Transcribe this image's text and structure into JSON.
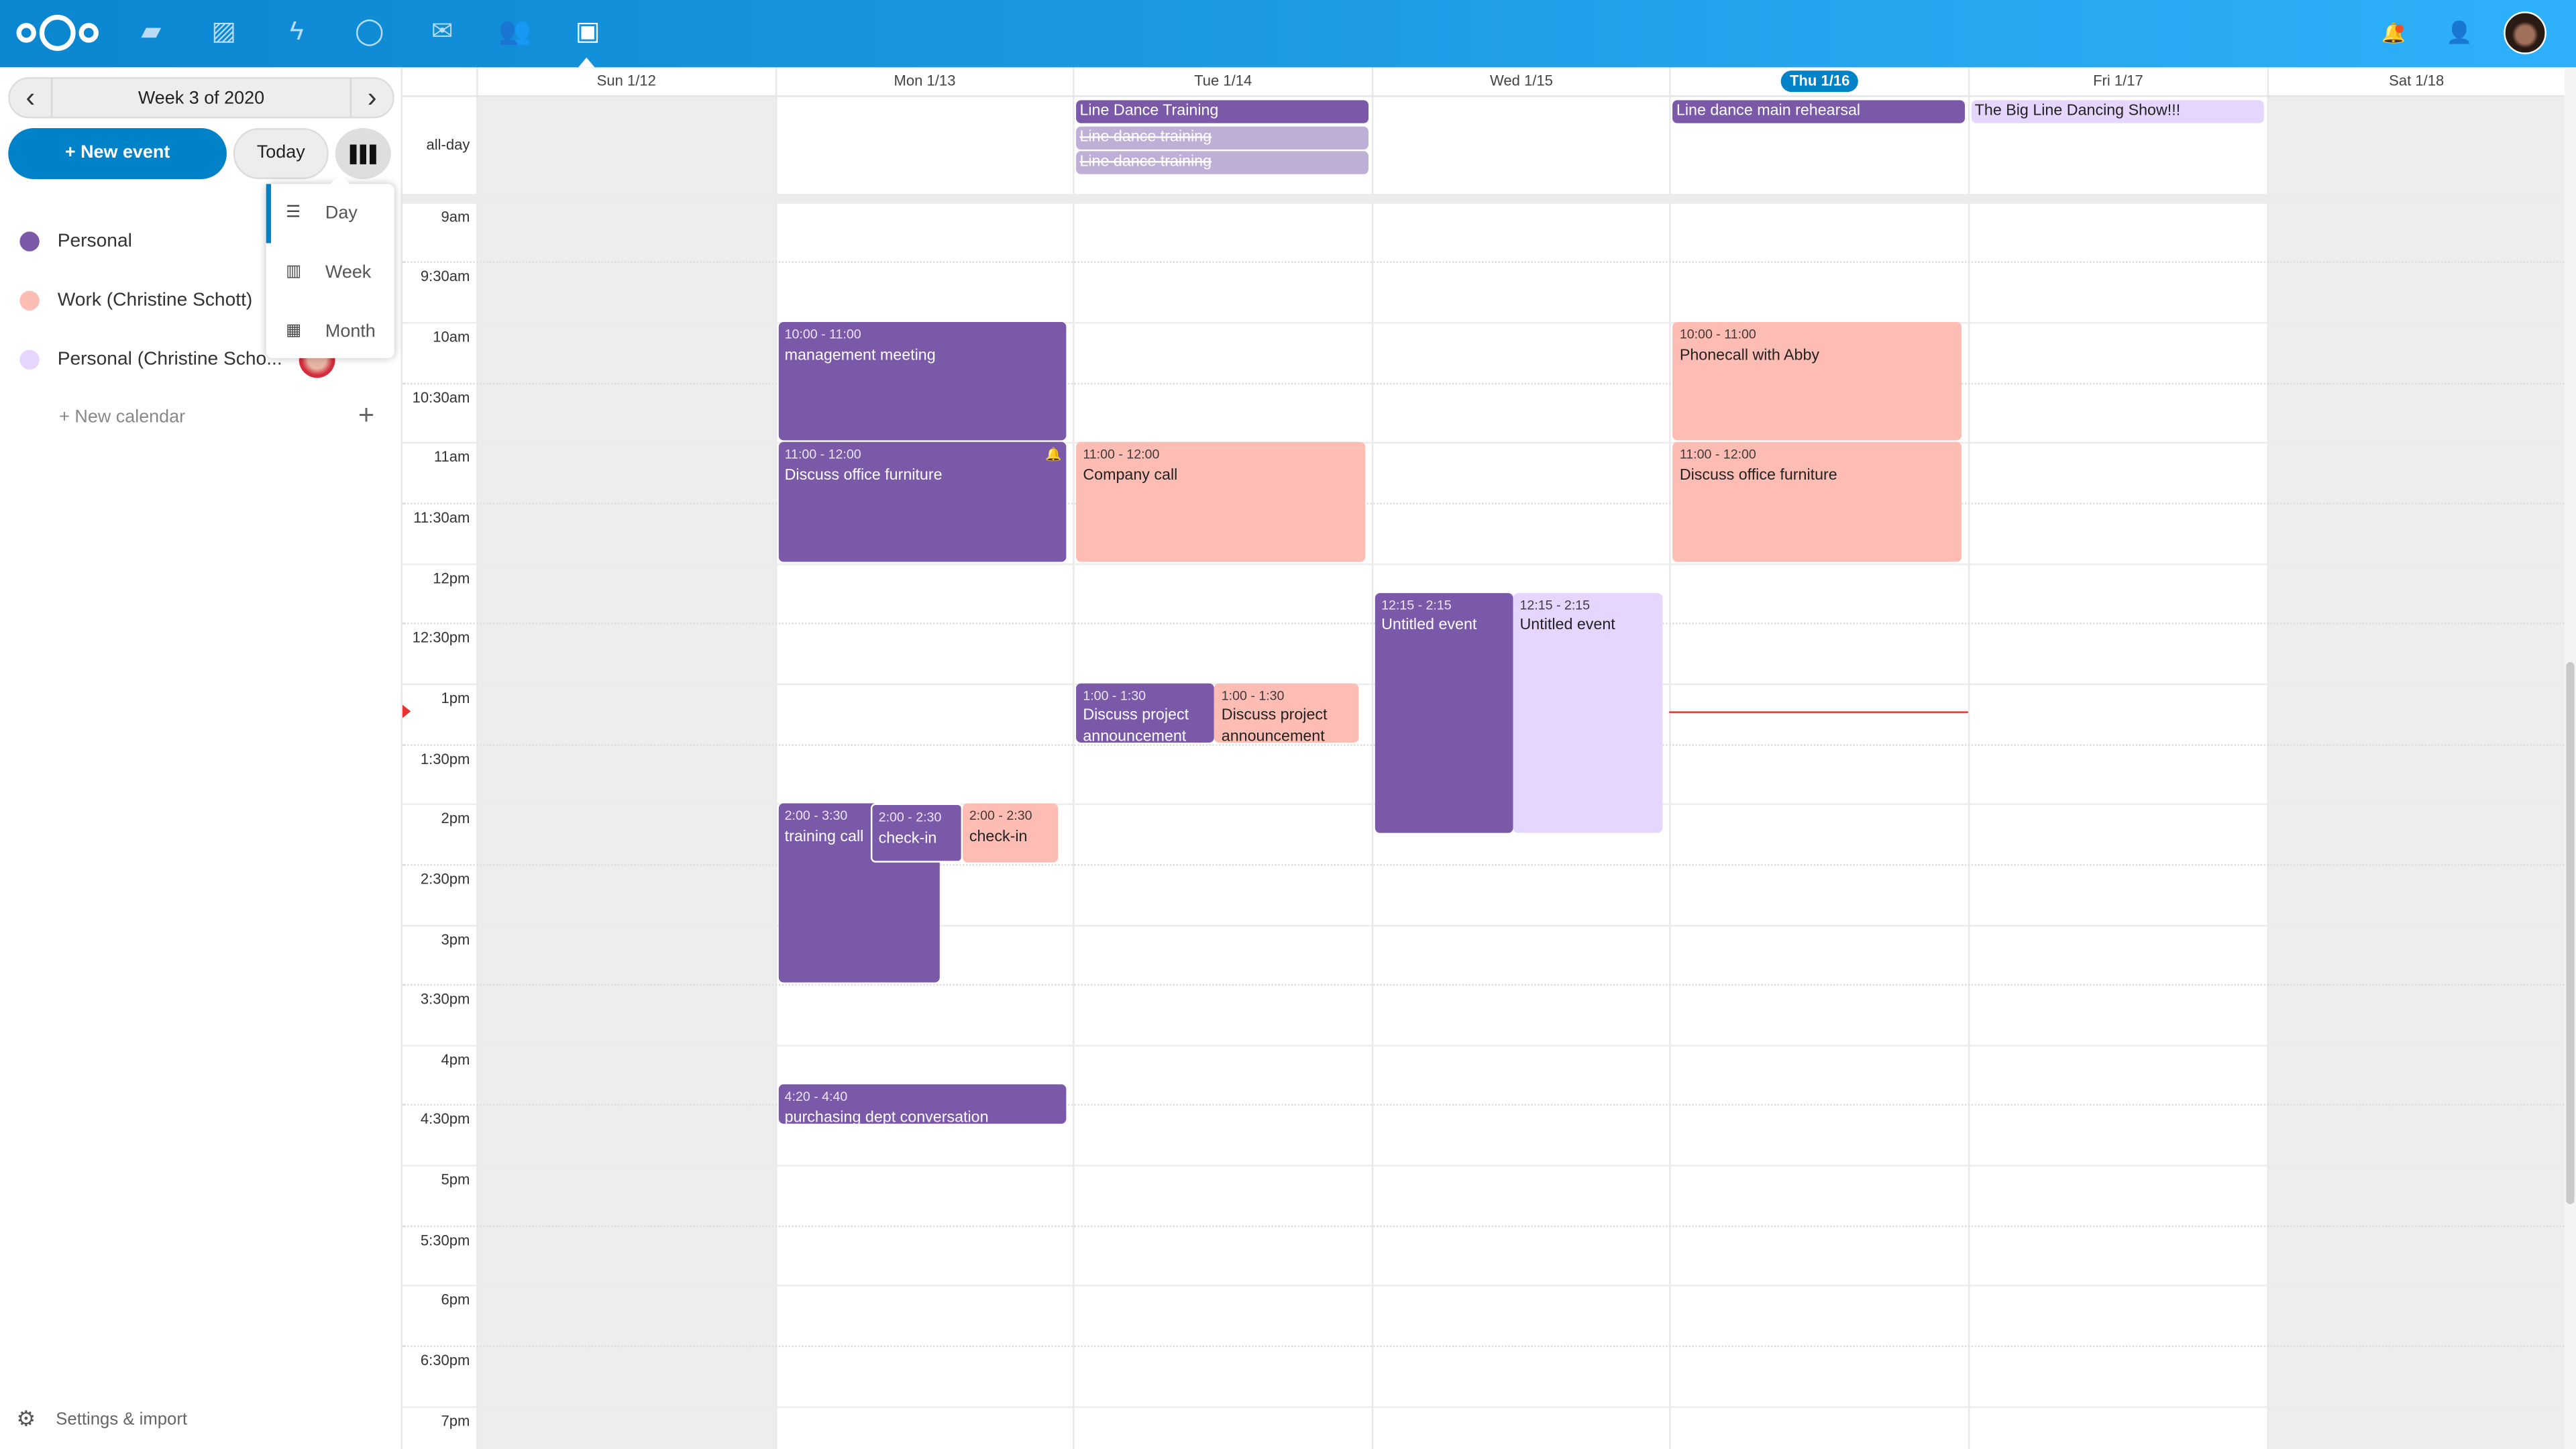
{
  "topbar": {
    "apps": [
      "nextcloud-logo",
      "files-icon",
      "photos-icon",
      "activity-icon",
      "talk-icon",
      "mail-icon",
      "contacts-icon",
      "calendar-icon"
    ],
    "right": [
      "notifications-icon",
      "contacts-menu-icon",
      "user-avatar"
    ],
    "accent": "#0082c9"
  },
  "sidebar": {
    "week_label": "Week 3 of 2020",
    "prev": "‹",
    "next": "›",
    "new_event": "+ New event",
    "today": "Today",
    "view_menu": [
      {
        "label": "Day",
        "icon": "day-view-icon",
        "active": true
      },
      {
        "label": "Week",
        "icon": "week-view-icon",
        "active": false
      },
      {
        "label": "Month",
        "icon": "month-view-icon",
        "active": false
      }
    ],
    "calendars": [
      {
        "label": "Personal",
        "color": "#7a59a9"
      },
      {
        "label": "Work (Christine Schott)",
        "color": "#fdbdb4"
      },
      {
        "label": "Personal (Christine Scho...",
        "color": "#e6d6ff",
        "shared": true,
        "more": "•••"
      }
    ],
    "new_calendar": "+ New calendar",
    "new_calendar_plus": "+",
    "settings": "Settings & import"
  },
  "calendar": {
    "days": [
      {
        "label": "Sun 1/12",
        "weekend": true
      },
      {
        "label": "Mon 1/13"
      },
      {
        "label": "Tue 1/14"
      },
      {
        "label": "Wed 1/15"
      },
      {
        "label": "Thu 1/16",
        "today": true
      },
      {
        "label": "Fri 1/17"
      },
      {
        "label": "Sat 1/18",
        "weekend": true
      }
    ],
    "allday_label": "all-day",
    "time_labels": [
      "9am",
      "9:30am",
      "10am",
      "10:30am",
      "11am",
      "11:30am",
      "12pm",
      "12:30pm",
      "1pm",
      "1:30pm",
      "2pm",
      "2:30pm",
      "3pm",
      "3:30pm",
      "4pm",
      "4:30pm",
      "5pm",
      "5:30pm",
      "6pm",
      "6:30pm",
      "7pm"
    ],
    "allday_events": [
      {
        "day": 2,
        "title": "Line Dance Training",
        "calendar": 0,
        "cancelled": false
      },
      {
        "day": 2,
        "title": "Line dance training",
        "calendar": 0,
        "cancelled": true
      },
      {
        "day": 2,
        "title": "Line dance training",
        "calendar": 0,
        "cancelled": true
      },
      {
        "day": 4,
        "title": "Line dance main rehearsal",
        "calendar": 0,
        "cancelled": false
      },
      {
        "day": 5,
        "title": "The Big Line Dancing Show!!!",
        "calendar": 2,
        "cancelled": false
      }
    ],
    "events": [
      {
        "day": 1,
        "time": "10:00 - 11:00",
        "title": "management meeting",
        "calendar": 0,
        "start": 10,
        "end": 11
      },
      {
        "day": 1,
        "time": "11:00 - 12:00",
        "title": "Discuss office furniture",
        "calendar": 0,
        "start": 11,
        "end": 12,
        "alarm": true
      },
      {
        "day": 2,
        "time": "11:00 - 12:00",
        "title": "Company call",
        "calendar": 1,
        "start": 11,
        "end": 12
      },
      {
        "day": 3,
        "time": "12:15 - 2:15",
        "title": "Untitled event",
        "calendar": 0,
        "start": 12.25,
        "end": 14.25
      },
      {
        "day": 3,
        "time": "12:15 - 2:15",
        "title": "Untitled event",
        "calendar": 2,
        "start": 12.25,
        "end": 14.25
      },
      {
        "day": 2,
        "time": "1:00 - 1:30",
        "title": "Discuss project announcement",
        "calendar": 0,
        "start": 13,
        "end": 13.5
      },
      {
        "day": 2,
        "time": "1:00 - 1:30",
        "title": "Discuss project announcement",
        "calendar": 1,
        "start": 13,
        "end": 13.5
      },
      {
        "day": 1,
        "time": "2:00 - 3:30",
        "title": "training call",
        "calendar": 0,
        "start": 14,
        "end": 15.5
      },
      {
        "day": 1,
        "time": "2:00 - 2:30",
        "title": "check-in",
        "calendar": 0,
        "start": 14,
        "end": 14.5
      },
      {
        "day": 1,
        "time": "2:00 - 2:30",
        "title": "check-in",
        "calendar": 1,
        "start": 14,
        "end": 14.5
      },
      {
        "day": 1,
        "time": "4:20 - 4:40",
        "title": "purchasing dept conversation",
        "calendar": 0,
        "start": 16.333,
        "end": 16.667
      },
      {
        "day": 4,
        "time": "10:00 - 11:00",
        "title": "Phonecall with Abby",
        "calendar": 1,
        "start": 10,
        "end": 11
      },
      {
        "day": 4,
        "time": "11:00 - 12:00",
        "title": "Discuss office furniture",
        "calendar": 1,
        "start": 11,
        "end": 12
      }
    ],
    "now": {
      "day": 4,
      "hour": 13.23,
      "color": "#e9322d"
    }
  }
}
